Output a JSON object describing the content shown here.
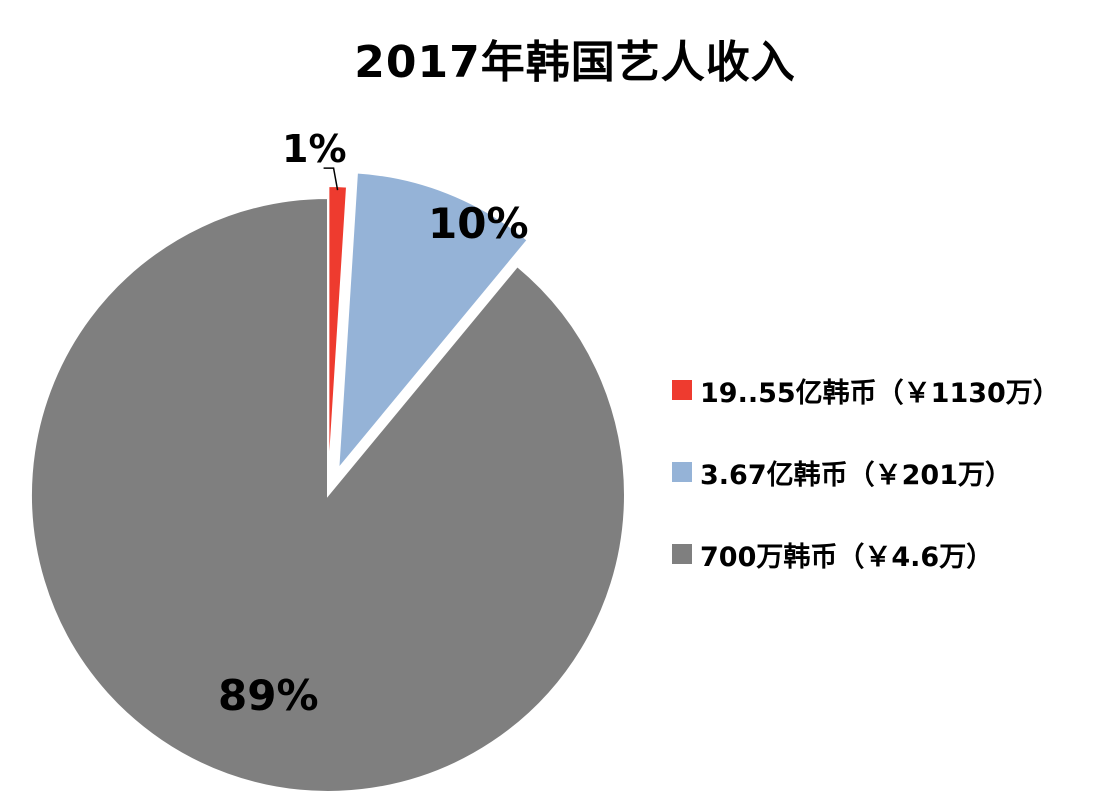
{
  "chart_data": {
    "type": "pie",
    "title": "2017年韩国艺人收入",
    "slices": [
      {
        "name": "19..55亿韩币（￥1130万）",
        "value": 1,
        "label": "1%",
        "color": "#ee3b2f",
        "exploded": true
      },
      {
        "name": "3.67亿韩币（￥201万）",
        "value": 10,
        "label": "10%",
        "color": "#95b3d7",
        "exploded": true
      },
      {
        "name": "700万韩币（￥4.6万）",
        "value": 89,
        "label": "89%",
        "color": "#7f7f7f",
        "exploded": false
      }
    ],
    "legend_position": "right"
  }
}
